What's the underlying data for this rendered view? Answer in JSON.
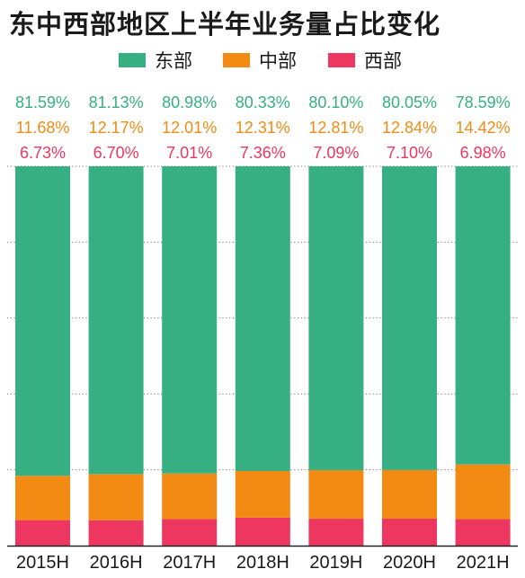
{
  "title": "东中西部地区上半年业务量占比变化",
  "colors": {
    "east": "#36b083",
    "central": "#f28a14",
    "west": "#ee3760",
    "grid": "#777777",
    "axis": "#222222"
  },
  "legend": [
    {
      "label": "东部",
      "color": "#36b083"
    },
    {
      "label": "中部",
      "color": "#f28a14"
    },
    {
      "label": "西部",
      "color": "#ee3760"
    }
  ],
  "chart_data": {
    "type": "bar",
    "stacked": true,
    "normalized": true,
    "categories": [
      "2015H",
      "2016H",
      "2017H",
      "2018H",
      "2019H",
      "2020H",
      "2021H"
    ],
    "series": [
      {
        "name": "东部",
        "color": "#36b083",
        "values": [
          81.59,
          81.13,
          80.98,
          80.33,
          80.1,
          80.05,
          78.59
        ],
        "labels": [
          "81.59%",
          "81.13%",
          "80.98%",
          "80.33%",
          "80.10%",
          "80.05%",
          "78.59%"
        ]
      },
      {
        "name": "中部",
        "color": "#f28a14",
        "values": [
          11.68,
          12.17,
          12.01,
          12.31,
          12.81,
          12.84,
          14.42
        ],
        "labels": [
          "11.68%",
          "12.17%",
          "12.01%",
          "12.31%",
          "12.81%",
          "12.84%",
          "14.42%"
        ]
      },
      {
        "name": "西部",
        "color": "#ee3760",
        "values": [
          6.73,
          6.7,
          7.01,
          7.36,
          7.09,
          7.1,
          6.98
        ],
        "labels": [
          "6.73%",
          "6.70%",
          "7.01%",
          "7.36%",
          "7.09%",
          "7.10%",
          "6.98%"
        ]
      }
    ],
    "ylim": [
      0,
      100
    ],
    "grid": true,
    "legend_position": "top-center"
  }
}
